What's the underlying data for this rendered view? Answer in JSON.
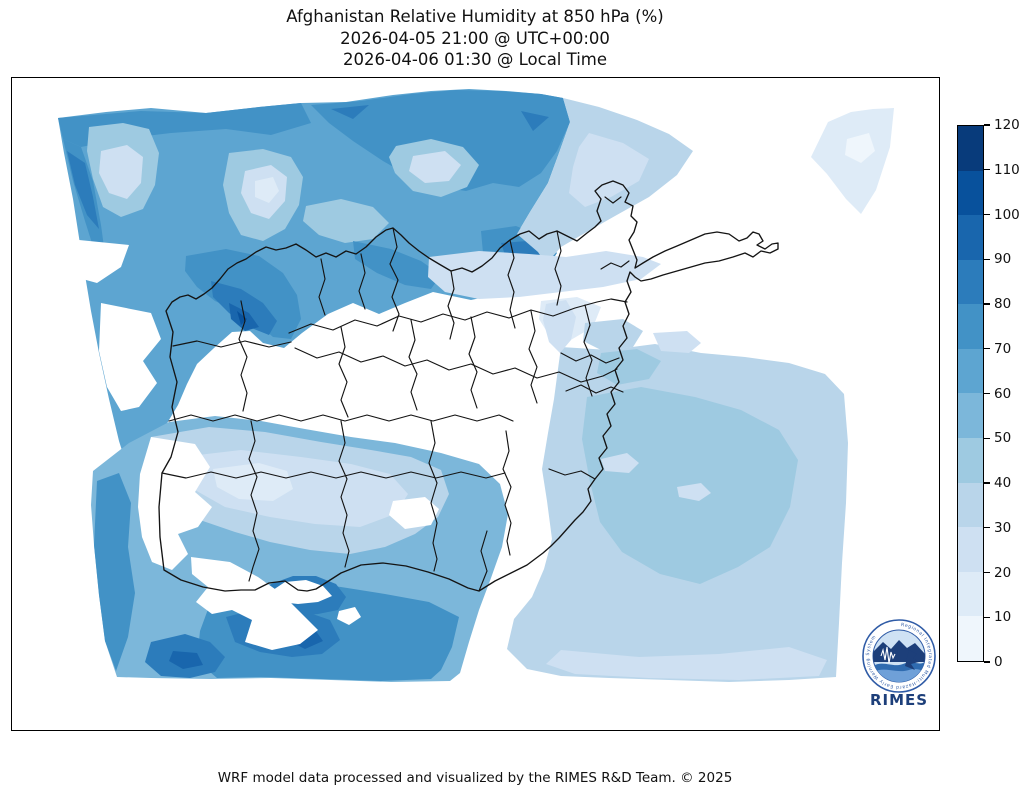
{
  "title": {
    "line1": "Afghanistan Relative Humidity at 850 hPa (%)",
    "line2": "2026-04-05 21:00 @ UTC+00:00",
    "line3": "2026-04-06 01:30 @ Local Time"
  },
  "footer": "WRF model data processed and visualized by the RIMES R&D Team. © 2025",
  "logo": {
    "name": "RIMES",
    "ring_text": "Regional Integrated Multi-Hazard Early Warning System"
  },
  "colorbar": {
    "unit": "%",
    "min": 0,
    "max": 120,
    "step": 10,
    "ticks": [
      0,
      10,
      20,
      30,
      40,
      50,
      60,
      70,
      80,
      90,
      100,
      110,
      120
    ],
    "colors_low_to_high": [
      "#eff6fc",
      "#deebf7",
      "#cee0f2",
      "#b9d5ea",
      "#9ecae1",
      "#7cb7da",
      "#5da5d1",
      "#4292c6",
      "#2c7cbb",
      "#1966ad",
      "#08519c",
      "#083b7b"
    ]
  },
  "chart_data": {
    "type": "heatmap",
    "title": "Afghanistan Relative Humidity at 850 hPa (%)",
    "legend_position": "right",
    "scale": {
      "min": 0,
      "max": 120,
      "interval": 10,
      "colormap": "Blues"
    },
    "regions_approx_humidity_pct": {
      "northwest_turkmenistan_border": "50-90",
      "north_border_strip": "20-50",
      "central_afghanistan_highlands": "0-10",
      "far_northeast_wakhan": "0-10",
      "top_right_patch": "10-30",
      "east_pakistan_plains": "30-50",
      "southwest_helmand_nimroz": "40-100",
      "southern_border_maxima": "90-100"
    }
  }
}
